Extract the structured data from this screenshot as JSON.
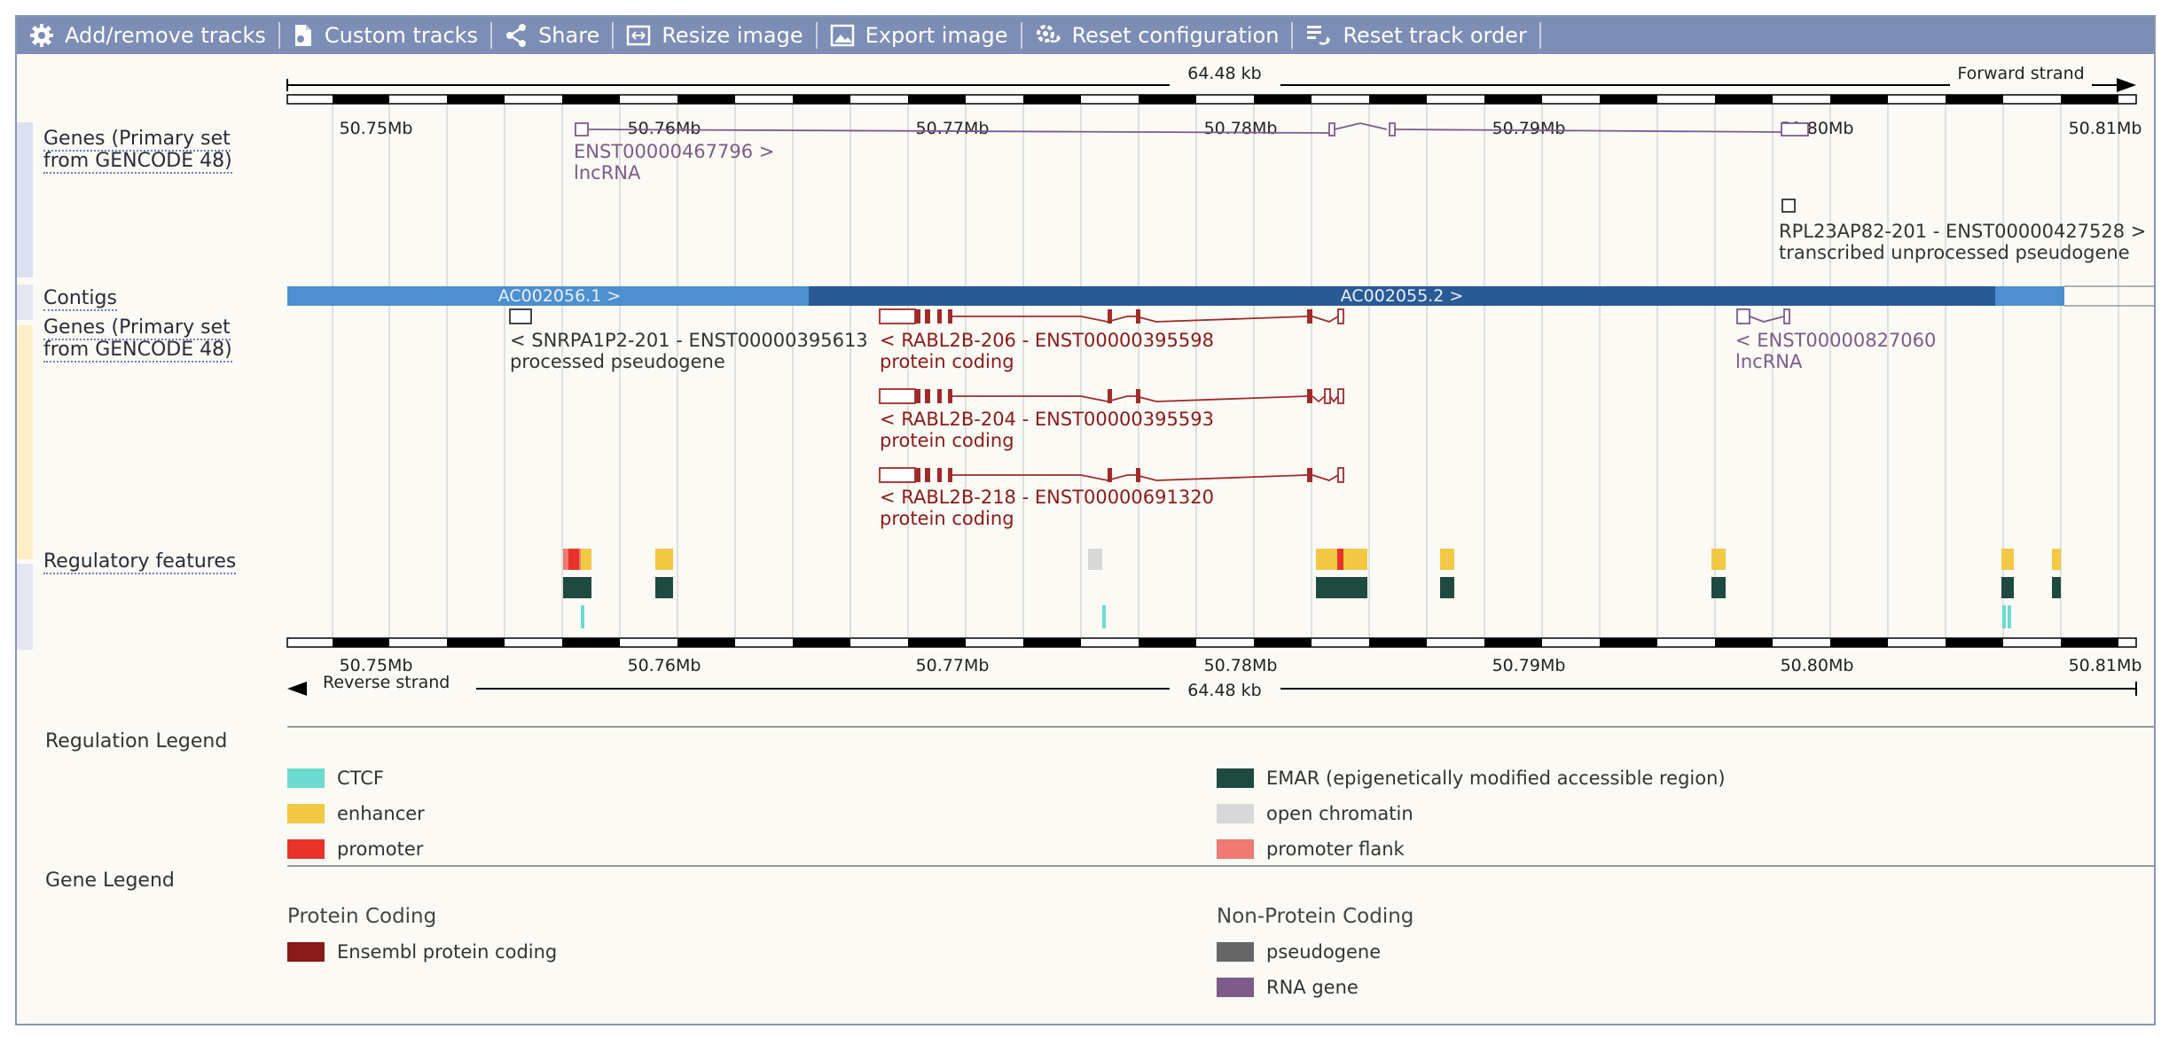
{
  "toolbar": {
    "buttons": [
      {
        "label": "Add/remove tracks",
        "icon": "gear-icon"
      },
      {
        "label": "Custom tracks",
        "icon": "custom-tracks-icon"
      },
      {
        "label": "Share",
        "icon": "share-icon"
      },
      {
        "label": "Resize image",
        "icon": "resize-icon"
      },
      {
        "label": "Export image",
        "icon": "export-image-icon"
      },
      {
        "label": "Reset configuration",
        "icon": "reset-config-icon"
      },
      {
        "label": "Reset track order",
        "icon": "reset-order-icon"
      }
    ]
  },
  "ruler": {
    "span_label": "64.48 kb",
    "forward_strand": "Forward strand",
    "reverse_strand": "Reverse strand",
    "ticks": [
      "50.75Mb",
      "50.76Mb",
      "50.77Mb",
      "50.78Mb",
      "50.79Mb",
      "50.80Mb",
      "50.81Mb"
    ]
  },
  "tracks": {
    "genes_forward_label_line1": "Genes (Primary set",
    "genes_forward_label_line2": "from GENCODE 48)",
    "contigs_label": "Contigs",
    "genes_reverse_label_line1": "Genes (Primary set",
    "genes_reverse_label_line2": "from GENCODE 48)",
    "regulatory_label": "Regulatory features"
  },
  "features": {
    "fwd_gene1_name": "ENST00000467796 >",
    "fwd_gene1_type": "lncRNA",
    "fwd_gene2_name": "RPL23AP82-201 - ENST00000427528 >",
    "fwd_gene2_type": "transcribed unprocessed pseudogene",
    "contig1": "AC002056.1 >",
    "contig2": "AC002055.2 >",
    "rev_gene1_name": "< SNRPA1P2-201 - ENST00000395613",
    "rev_gene1_type": "processed pseudogene",
    "rev_gene2_name": "< RABL2B-206 - ENST00000395598",
    "rev_gene2_type": "protein coding",
    "rev_gene3_name": "< RABL2B-204 - ENST00000395593",
    "rev_gene3_type": "protein coding",
    "rev_gene4_name": "< RABL2B-218 - ENST00000691320",
    "rev_gene4_type": "protein coding",
    "rev_gene5_name": "< ENST00000827060",
    "rev_gene5_type": "lncRNA"
  },
  "regulation_legend": {
    "title": "Regulation Legend",
    "items": [
      {
        "label": "CTCF",
        "color": "#6ddbd0"
      },
      {
        "label": "enhancer",
        "color": "#f2c844"
      },
      {
        "label": "promoter",
        "color": "#e8332a"
      },
      {
        "label": "EMAR (epigenetically modified accessible region)",
        "color": "#1e4a40"
      },
      {
        "label": "open chromatin",
        "color": "#d8d8d8"
      },
      {
        "label": "promoter flank",
        "color": "#ee7a72"
      }
    ]
  },
  "gene_legend": {
    "title": "Gene Legend",
    "protein_coding_title": "Protein Coding",
    "non_protein_coding_title": "Non-Protein Coding",
    "items": [
      {
        "label": "Ensembl protein coding",
        "color": "#8b1a1a"
      },
      {
        "label": "pseudogene",
        "color": "#666666"
      },
      {
        "label": "RNA gene",
        "color": "#7d5b8a"
      }
    ]
  },
  "colors": {
    "toolbar_bg": "#7c8db6",
    "lncrna": "#7d5b8a",
    "protein_coding": "#a12a2a",
    "pseudogene": "#444444",
    "contig_light": "#4e8fcf",
    "contig_dark": "#2a5a96"
  }
}
